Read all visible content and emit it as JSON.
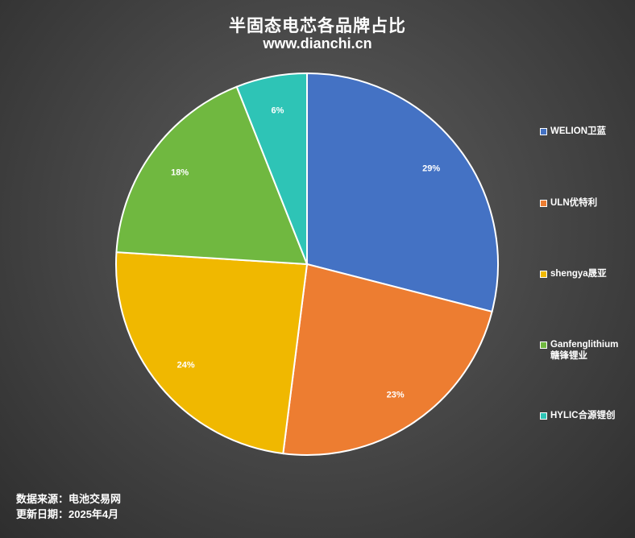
{
  "title": "半固态电芯各品牌占比",
  "subtitle": "www.dianchi.cn",
  "chart_data": {
    "type": "pie",
    "title": "半固态电芯各品牌占比",
    "categories": [
      "WELION卫蓝",
      "ULN优特利",
      "shengya晟亚",
      "Ganfenglithium赣锋锂业",
      "HYLIC合源锂创"
    ],
    "values": [
      29,
      23,
      24,
      18,
      6
    ],
    "value_labels": [
      "29%",
      "23%",
      "24%",
      "18%",
      "6%"
    ],
    "colors": [
      "#4472c4",
      "#ed7d31",
      "#f0b800",
      "#70b840",
      "#2ec4b6"
    ],
    "start_angle": "12 o'clock",
    "direction": "clockwise",
    "legend_position": "right"
  },
  "legend": [
    {
      "line1": "WELION卫蓝",
      "line2": ""
    },
    {
      "line1": "ULN优特利",
      "line2": ""
    },
    {
      "line1": "shengya晟亚",
      "line2": ""
    },
    {
      "line1": "Ganfenglithium",
      "line2": "赣锋锂业"
    },
    {
      "line1": "HYLIC合源锂创",
      "line2": ""
    }
  ],
  "source": {
    "line1": "数据来源：电池交易网",
    "line2": "更新日期：2025年4月"
  }
}
